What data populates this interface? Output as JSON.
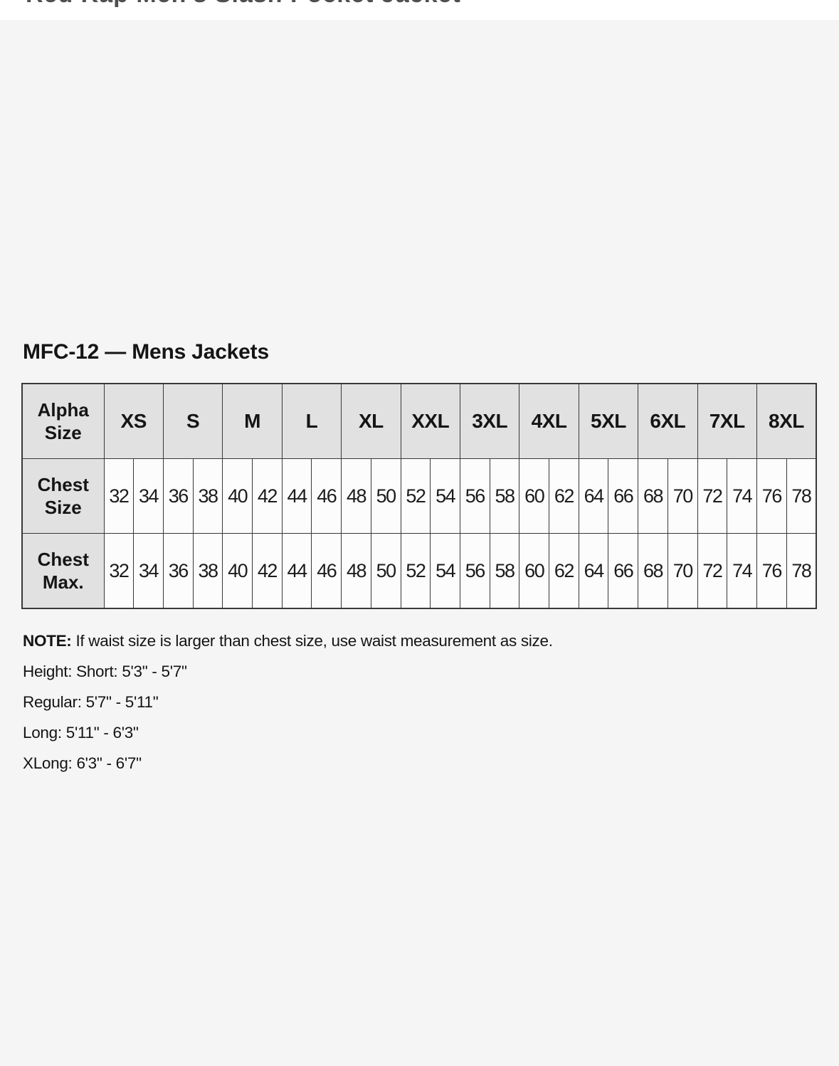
{
  "page": {
    "product_title": "Red Kap Men's Slash Pocket Jacket"
  },
  "size_chart": {
    "title": "MFC-12 — Mens Jackets"
  },
  "table": {
    "corner_label": "Alpha Size",
    "alpha_sizes": [
      "XS",
      "S",
      "M",
      "L",
      "XL",
      "XXL",
      "3XL",
      "4XL",
      "5XL",
      "6XL",
      "7XL",
      "8XL"
    ],
    "row_headers": [
      "Chest Size",
      "Chest Max."
    ],
    "chest_size": [
      "32",
      "34",
      "36",
      "38",
      "40",
      "42",
      "44",
      "46",
      "48",
      "50",
      "52",
      "54",
      "56",
      "58",
      "60",
      "62",
      "64",
      "66",
      "68",
      "70",
      "72",
      "74",
      "76",
      "78"
    ],
    "chest_max": [
      "32",
      "34",
      "36",
      "38",
      "40",
      "42",
      "44",
      "46",
      "48",
      "50",
      "52",
      "54",
      "56",
      "58",
      "60",
      "62",
      "64",
      "66",
      "68",
      "70",
      "72",
      "74",
      "76",
      "78"
    ]
  },
  "notes": {
    "label": "NOTE:",
    "text": " If waist size is larger than chest size, use waist measurement as size.",
    "lines": [
      "Height: Short: 5'3\" - 5'7\"",
      "Regular: 5'7\" - 5'11\"",
      "Long: 5'11\" - 6'3\"",
      "XLong: 6'3\" - 6'7\""
    ]
  },
  "colors": {
    "content_background": "#f5f5f5",
    "header_cell_background": "#e1e1e1",
    "data_cell_background": "#fcfcfc",
    "table_border": "#383838",
    "text_primary": "#151515",
    "top_title_gray": "#4f4f4f"
  }
}
